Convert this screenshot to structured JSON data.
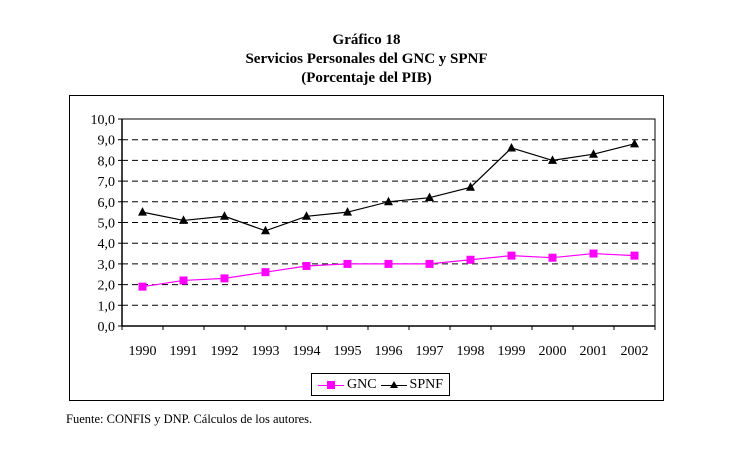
{
  "header": {
    "line1": "Gráfico 18",
    "line2": "Servicios Personales del GNC y SPNF",
    "line3": "(Porcentaje del PIB)"
  },
  "source_note": "Fuente: CONFIS y DNP. Cálculos de los autores.",
  "legend": {
    "items": [
      {
        "label": "GNC",
        "marker": "square",
        "color": "#ff00ff"
      },
      {
        "label": "SPNF",
        "marker": "triangle",
        "color": "#000000"
      }
    ]
  },
  "chart_data": {
    "type": "line",
    "title": "Gráfico 18 — Servicios Personales del GNC y SPNF (Porcentaje del PIB)",
    "xlabel": "",
    "ylabel": "",
    "categories": [
      "1990",
      "1991",
      "1992",
      "1993",
      "1994",
      "1995",
      "1996",
      "1997",
      "1998",
      "1999",
      "2000",
      "2001",
      "2002"
    ],
    "yticks": [
      "0,0",
      "1,0",
      "2,0",
      "3,0",
      "4,0",
      "5,0",
      "6,0",
      "7,0",
      "8,0",
      "9,0",
      "10,0"
    ],
    "ylim": [
      0,
      10
    ],
    "grid": "horizontal-dashed",
    "legend_position": "bottom",
    "series": [
      {
        "name": "GNC",
        "color": "#ff00ff",
        "marker": "square",
        "values": [
          1.9,
          2.2,
          2.3,
          2.6,
          2.9,
          3.0,
          3.0,
          3.0,
          3.2,
          3.4,
          3.3,
          3.5,
          3.4
        ]
      },
      {
        "name": "SPNF",
        "color": "#000000",
        "marker": "triangle",
        "values": [
          5.5,
          5.1,
          5.3,
          4.6,
          5.3,
          5.5,
          6.0,
          6.2,
          6.7,
          8.6,
          8.0,
          8.3,
          8.8
        ]
      }
    ]
  }
}
